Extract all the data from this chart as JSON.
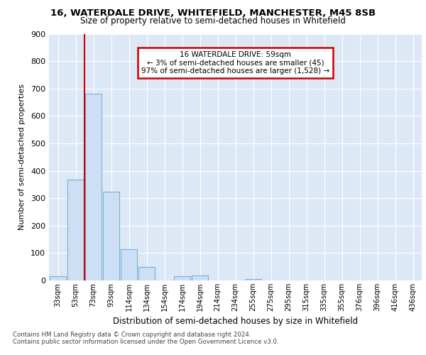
{
  "title1": "16, WATERDALE DRIVE, WHITEFIELD, MANCHESTER, M45 8SB",
  "title2": "Size of property relative to semi-detached houses in Whitefield",
  "xlabel": "Distribution of semi-detached houses by size in Whitefield",
  "ylabel": "Number of semi-detached properties",
  "footer1": "Contains HM Land Registry data © Crown copyright and database right 2024.",
  "footer2": "Contains public sector information licensed under the Open Government Licence v3.0.",
  "property_label": "16 WATERDALE DRIVE: 59sqm",
  "pct_smaller": 3,
  "count_smaller": 45,
  "pct_larger": 97,
  "count_larger": 1528,
  "bar_categories": [
    "33sqm",
    "53sqm",
    "73sqm",
    "93sqm",
    "114sqm",
    "134sqm",
    "154sqm",
    "174sqm",
    "194sqm",
    "214sqm",
    "234sqm",
    "255sqm",
    "275sqm",
    "295sqm",
    "315sqm",
    "335sqm",
    "355sqm",
    "376sqm",
    "396sqm",
    "416sqm",
    "436sqm"
  ],
  "bar_values": [
    15,
    368,
    680,
    323,
    115,
    48,
    0,
    15,
    18,
    0,
    0,
    5,
    0,
    0,
    0,
    0,
    0,
    0,
    0,
    0,
    0
  ],
  "bar_color": "#ccdff5",
  "bar_edge_color": "#7bafd4",
  "vline_x": 1.5,
  "annotation_box_color": "#cc0000",
  "ylim": [
    0,
    900
  ],
  "yticks": [
    0,
    100,
    200,
    300,
    400,
    500,
    600,
    700,
    800,
    900
  ],
  "plot_bg_color": "#dce8f5",
  "grid_color": "#ffffff"
}
